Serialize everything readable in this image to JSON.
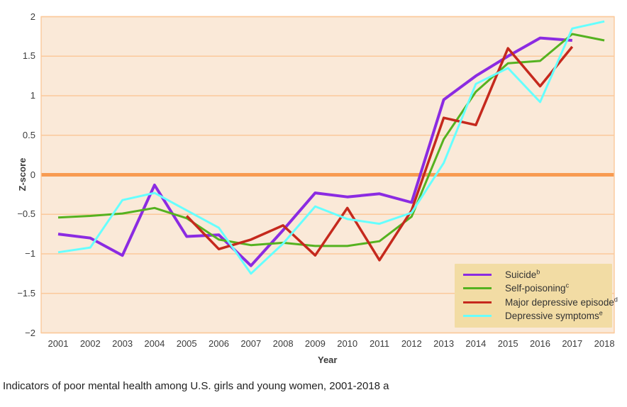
{
  "figure": {
    "caption": "Indicators of poor mental health among U.S. girls and young women, 2001-2018 a"
  },
  "chart_data": {
    "type": "line",
    "title": "",
    "xlabel": "Year",
    "ylabel": "Z-score",
    "ylim": [
      -2,
      2
    ],
    "yticks": [
      2,
      1.5,
      1,
      0.5,
      0,
      -0.5,
      -1,
      -1.5,
      -2
    ],
    "ytick_labels": [
      "2",
      "1.5",
      "1",
      "0.5",
      "0",
      "−0.5",
      "−1",
      "−1.5",
      "−2"
    ],
    "x": [
      2001,
      2002,
      2003,
      2004,
      2005,
      2006,
      2007,
      2008,
      2009,
      2010,
      2011,
      2012,
      2013,
      2014,
      2015,
      2016,
      2017,
      2018
    ],
    "series": [
      {
        "name": "Suicide",
        "sup": "b",
        "color": "#8b2be2",
        "values": [
          -0.75,
          -0.8,
          -1.02,
          -0.13,
          -0.78,
          -0.76,
          -1.15,
          -0.7,
          -0.23,
          -0.28,
          -0.24,
          -0.35,
          0.95,
          1.25,
          1.5,
          1.73,
          1.7,
          null
        ]
      },
      {
        "name": "Self-poisoning",
        "sup": "c",
        "color": "#55b220",
        "values": [
          -0.54,
          -0.52,
          -0.49,
          -0.42,
          -0.55,
          -0.82,
          -0.89,
          -0.86,
          -0.9,
          -0.9,
          -0.84,
          -0.53,
          0.45,
          1.05,
          1.41,
          1.44,
          1.78,
          1.7
        ]
      },
      {
        "name": "Major depressive episode",
        "sup": "d",
        "color": "#c5291d",
        "values": [
          null,
          null,
          null,
          null,
          -0.52,
          -0.94,
          -0.82,
          -0.64,
          -1.02,
          -0.42,
          -1.08,
          -0.45,
          0.72,
          0.63,
          1.6,
          1.12,
          1.62,
          null
        ]
      },
      {
        "name": "Depressive symptoms",
        "sup": "e",
        "color": "#66ffff",
        "values": [
          -0.98,
          -0.92,
          -0.32,
          -0.23,
          -0.45,
          -0.67,
          -1.25,
          -0.87,
          -0.4,
          -0.56,
          -0.62,
          -0.48,
          0.15,
          1.15,
          1.35,
          0.92,
          1.85,
          1.94
        ]
      }
    ],
    "grid": true,
    "zero_line": true,
    "legend_position": "lower right",
    "colors": {
      "plot_bg": "#fae9d8",
      "grid": "#fbc99b",
      "zero_line": "#f89b51",
      "legend_bg": "#f2dca4",
      "text": "#3b3b3b"
    }
  }
}
